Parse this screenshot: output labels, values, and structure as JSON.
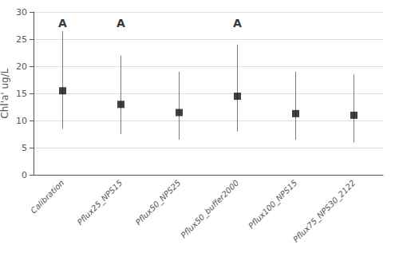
{
  "chart_data": {
    "type": "errorbar",
    "categories": [
      "Calibration",
      "Pflux25_NPS15",
      "Pflux50_NPS25",
      "Pflux50_buffer2000",
      "Pflux100_NPS15",
      "Pflux75_NPS30_2122"
    ],
    "values": [
      15.5,
      13.0,
      11.5,
      14.5,
      11.3,
      11.0
    ],
    "upper_whiskers": [
      26.5,
      22.0,
      19.0,
      24.0,
      19.0,
      18.5
    ],
    "lower_whiskers": [
      8.5,
      7.5,
      6.5,
      8.0,
      6.5,
      6.0
    ],
    "annotations": [
      {
        "x": "Calibration",
        "y": 28.0,
        "text": "A"
      },
      {
        "x": "Pflux25_NPS15",
        "y": 28.0,
        "text": "A"
      },
      {
        "x": "Pflux50_buffer2000",
        "y": 28.0,
        "text": "A"
      }
    ],
    "ylabel": "Chl'a' ug/L",
    "ylim": [
      0,
      30
    ],
    "yticks": [
      0,
      5,
      10,
      15,
      20,
      25,
      30
    ],
    "color": "#111111",
    "marker": "square",
    "grid": true
  }
}
